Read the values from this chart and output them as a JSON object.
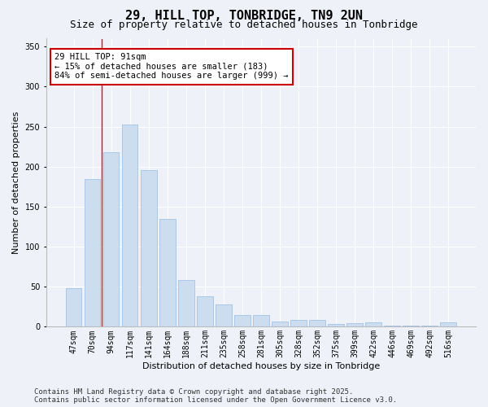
{
  "title": "29, HILL TOP, TONBRIDGE, TN9 2UN",
  "subtitle": "Size of property relative to detached houses in Tonbridge",
  "xlabel": "Distribution of detached houses by size in Tonbridge",
  "ylabel": "Number of detached properties",
  "categories": [
    "47sqm",
    "70sqm",
    "94sqm",
    "117sqm",
    "141sqm",
    "164sqm",
    "188sqm",
    "211sqm",
    "235sqm",
    "258sqm",
    "281sqm",
    "305sqm",
    "328sqm",
    "352sqm",
    "375sqm",
    "399sqm",
    "422sqm",
    "446sqm",
    "469sqm",
    "492sqm",
    "516sqm"
  ],
  "values": [
    48,
    185,
    218,
    253,
    196,
    135,
    58,
    38,
    28,
    15,
    15,
    7,
    9,
    9,
    3,
    5,
    6,
    1,
    1,
    1,
    6
  ],
  "bar_color": "#ccddf0",
  "bar_edge_color": "#aac8e8",
  "background_color": "#eef2f8",
  "grid_color": "#ffffff",
  "red_line_x": 1.5,
  "annotation_text": "29 HILL TOP: 91sqm\n← 15% of detached houses are smaller (183)\n84% of semi-detached houses are larger (999) →",
  "annotation_box_color": "#ffffff",
  "annotation_box_edge_color": "#cc0000",
  "ylim": [
    0,
    360
  ],
  "yticks": [
    0,
    50,
    100,
    150,
    200,
    250,
    300,
    350
  ],
  "footer": "Contains HM Land Registry data © Crown copyright and database right 2025.\nContains public sector information licensed under the Open Government Licence v3.0.",
  "title_fontsize": 11,
  "subtitle_fontsize": 9,
  "label_fontsize": 8,
  "tick_fontsize": 7,
  "footer_fontsize": 6.5,
  "annotation_fontsize": 7.5
}
